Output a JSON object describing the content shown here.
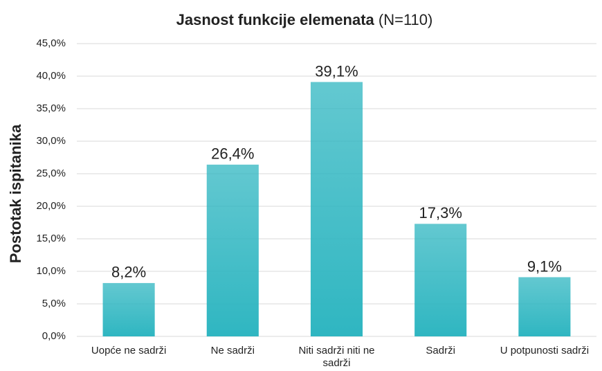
{
  "chart_data": {
    "type": "bar",
    "title": "Jasnost funkcije elemenata",
    "title_note": "(N=110)",
    "y_label": "Postotak ispitanika",
    "categories": [
      "Uopće ne sadrži",
      "Ne sadrži",
      "Niti sadrži niti ne sadrži",
      "Sadrži",
      "U potpunosti sadrži"
    ],
    "values": [
      8.2,
      26.4,
      39.1,
      17.3,
      9.1
    ],
    "value_labels": [
      "8,2%",
      "26,4%",
      "39,1%",
      "17,3%",
      "9,1%"
    ],
    "color": "#2fb6c1",
    "ylim": [
      0,
      45
    ],
    "yticks": [
      {
        "value": 0,
        "label": "0,0%"
      },
      {
        "value": 5,
        "label": "5,0%"
      },
      {
        "value": 10,
        "label": "10,0%"
      },
      {
        "value": 15,
        "label": "15,0%"
      },
      {
        "value": 20,
        "label": "20,0%"
      },
      {
        "value": 25,
        "label": "25,0%"
      },
      {
        "value": 30,
        "label": "30,0%"
      },
      {
        "value": 35,
        "label": "35,0%"
      },
      {
        "value": 40,
        "label": "40,0%"
      },
      {
        "value": 45,
        "label": "45,0%"
      }
    ],
    "grid": true
  }
}
